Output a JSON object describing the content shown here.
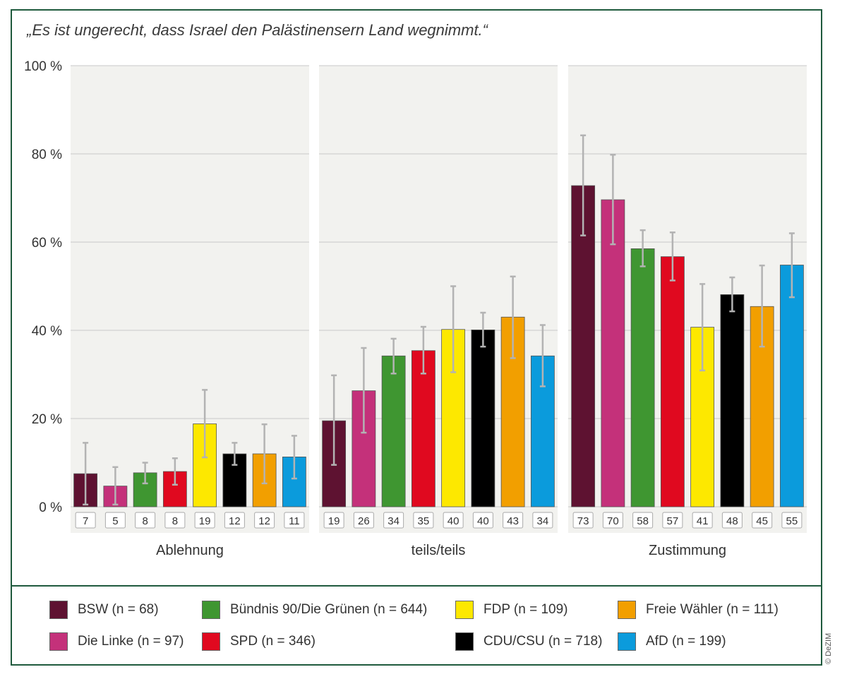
{
  "title": "„Es ist ungerecht, dass Israel den Palästinensern Land wegnimmt.“",
  "credit": "© DeZIM",
  "chart_data": {
    "type": "bar",
    "title": "„Es ist ungerecht, dass Israel den Palästinensern Land wegnimmt.“",
    "ylabel": "",
    "ylim": [
      0,
      100
    ],
    "yticks": [
      0,
      20,
      40,
      60,
      80,
      100
    ],
    "ytick_labels": [
      "0 %",
      "20 %",
      "40 %",
      "60 %",
      "80 %",
      "100 %"
    ],
    "grid": true,
    "panels": [
      "Ablehnung",
      "teils/teils",
      "Zustimmung"
    ],
    "series": [
      {
        "name": "BSW",
        "legend": "BSW (n = 68)",
        "color": "#5e1231",
        "values": [
          7,
          19,
          73
        ],
        "ci_low": [
          0.5,
          9.5,
          61.5
        ],
        "ci_high": [
          14.5,
          29.8,
          84.2
        ]
      },
      {
        "name": "Die Linke",
        "legend": "Die Linke (n = 97)",
        "color": "#c4317a",
        "values": [
          5,
          26,
          70
        ],
        "ci_low": [
          0.5,
          16.8,
          59.5
        ],
        "ci_high": [
          9,
          36,
          79.8
        ]
      },
      {
        "name": "Bündnis 90/Die Grünen",
        "legend": "Bündnis 90/Die Grünen (n = 644)",
        "color": "#3f9631",
        "values": [
          8,
          34,
          58
        ],
        "ci_low": [
          5.3,
          30.2,
          54.5
        ],
        "ci_high": [
          10,
          38.1,
          62.7
        ]
      },
      {
        "name": "SPD",
        "legend": "SPD (n = 346)",
        "color": "#e0091f",
        "values": [
          8,
          35,
          57
        ],
        "ci_low": [
          5,
          30.2,
          51.3
        ],
        "ci_high": [
          11,
          40.8,
          62.2
        ]
      },
      {
        "name": "FDP",
        "legend": "FDP (n = 109)",
        "color": "#fde800",
        "values": [
          19,
          40,
          41
        ],
        "ci_low": [
          11.2,
          30.5,
          30.9
        ],
        "ci_high": [
          26.5,
          50,
          50.5
        ]
      },
      {
        "name": "CDU/CSU",
        "legend": "CDU/CSU (n = 718)",
        "color": "#000000",
        "values": [
          12,
          40,
          48
        ],
        "ci_low": [
          9.5,
          36.3,
          44.3
        ],
        "ci_high": [
          14.5,
          44,
          52
        ]
      },
      {
        "name": "Freie Wähler",
        "legend": "Freie Wähler (n = 111)",
        "color": "#f29f00",
        "values": [
          12,
          43,
          45
        ],
        "ci_low": [
          5.3,
          33.7,
          36.3
        ],
        "ci_high": [
          18.7,
          52.2,
          54.7
        ]
      },
      {
        "name": "AfD",
        "legend": "AfD (n = 199)",
        "color": "#0b9bdc",
        "values": [
          11,
          34,
          55
        ],
        "ci_low": [
          6.4,
          27.3,
          47.5
        ],
        "ci_high": [
          16.1,
          41.2,
          62
        ]
      }
    ],
    "value_labels": [
      [
        "7",
        "5",
        "8",
        "8",
        "19",
        "12",
        "12",
        "11"
      ],
      [
        "19",
        "26",
        "34",
        "35",
        "40",
        "40",
        "43",
        "34"
      ],
      [
        "73",
        "70",
        "58",
        "57",
        "41",
        "48",
        "45",
        "55"
      ]
    ],
    "plotted_values": [
      [
        7.5,
        4.7,
        7.7,
        8,
        18.8,
        12,
        12,
        11.3
      ],
      [
        19.5,
        26.3,
        34.2,
        35.4,
        40.2,
        40.1,
        43,
        34.2
      ],
      [
        72.8,
        69.6,
        58.5,
        56.7,
        40.7,
        48.1,
        45.4,
        54.8
      ]
    ],
    "legend_position": "bottom"
  },
  "colors": {
    "panel_bg": "#f2f2ef",
    "grid": "#c8c8c8",
    "frame": "#1f5a3d",
    "error_bar": "#b3b3b3"
  }
}
